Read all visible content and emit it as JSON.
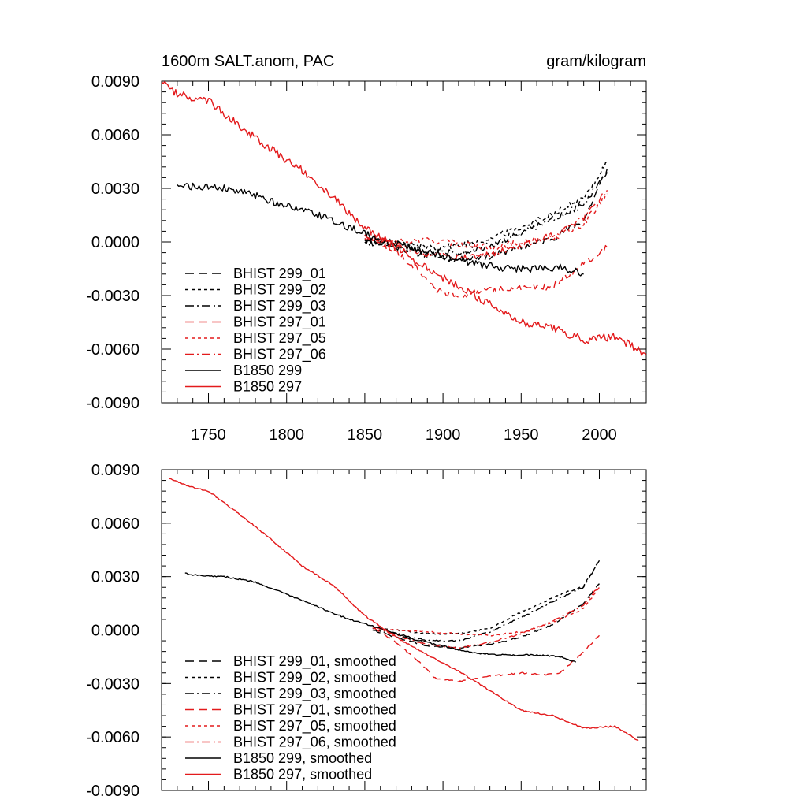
{
  "chart_data": [
    {
      "type": "line",
      "title": "1600m SALT.anom, PAC",
      "units": "gram/kilogram",
      "xlim": [
        1720,
        2030
      ],
      "ylim": [
        -0.009,
        0.009
      ],
      "xticks": [
        1750,
        1800,
        1850,
        1900,
        1950,
        2000
      ],
      "xtick_labels": [
        "1750",
        "1800",
        "1850",
        "1900",
        "1950",
        "2000"
      ],
      "yticks": [
        -0.009,
        -0.006,
        -0.003,
        0.0,
        0.003,
        0.006,
        0.009
      ],
      "ytick_labels": [
        "-0.0090",
        "-0.0060",
        "-0.0030",
        "0.0000",
        "0.0030",
        "0.0060",
        "0.0090"
      ],
      "legend_position": "bottom-left",
      "series": [
        {
          "name": "BHIST 299_01",
          "color": "#000000",
          "dash": "long-dash",
          "jitter": 0.00018,
          "x": [
            1850,
            1870,
            1890,
            1910,
            1930,
            1950,
            1970,
            1990,
            2005
          ],
          "y": [
            0.0002,
            -0.0003,
            -0.0008,
            -0.001,
            -0.0008,
            -0.0003,
            0.0002,
            0.0012,
            0.0041
          ]
        },
        {
          "name": "BHIST 299_02",
          "color": "#000000",
          "dash": "short-dash",
          "jitter": 0.00018,
          "x": [
            1850,
            1870,
            1890,
            1910,
            1930,
            1950,
            1970,
            1990,
            2005
          ],
          "y": [
            0.0001,
            0.0,
            -0.0003,
            -0.0002,
            0.0002,
            0.0008,
            0.0016,
            0.0024,
            0.0045
          ]
        },
        {
          "name": "BHIST 299_03",
          "color": "#000000",
          "dash": "dash-dot",
          "jitter": 0.00018,
          "x": [
            1850,
            1870,
            1890,
            1910,
            1930,
            1950,
            1970,
            1990,
            2005
          ],
          "y": [
            0.0,
            -0.0002,
            -0.0005,
            -0.0006,
            -0.0002,
            0.0005,
            0.0013,
            0.0021,
            0.0039
          ]
        },
        {
          "name": "BHIST 297_01",
          "color": "#e31a1c",
          "dash": "long-dash",
          "jitter": 0.00018,
          "x": [
            1850,
            1870,
            1885,
            1895,
            1910,
            1930,
            1950,
            1970,
            1985,
            2005
          ],
          "y": [
            0.0004,
            -0.0006,
            -0.0016,
            -0.0027,
            -0.003,
            -0.0027,
            -0.0026,
            -0.0025,
            -0.0015,
            -0.0003
          ]
        },
        {
          "name": "BHIST 297_05",
          "color": "#e31a1c",
          "dash": "short-dash",
          "jitter": 0.00018,
          "x": [
            1850,
            1870,
            1890,
            1910,
            1930,
            1950,
            1970,
            1990,
            2005
          ],
          "y": [
            0.0002,
            0.0,
            0.0001,
            -0.0001,
            -0.0003,
            0.0,
            0.0002,
            0.001,
            0.0027
          ]
        },
        {
          "name": "BHIST 297_06",
          "color": "#e31a1c",
          "dash": "dash-dot",
          "jitter": 0.00018,
          "x": [
            1850,
            1870,
            1890,
            1910,
            1930,
            1950,
            1970,
            1990,
            2005
          ],
          "y": [
            0.0004,
            -0.0002,
            -0.0007,
            -0.0009,
            -0.0007,
            -0.0002,
            0.0004,
            0.0013,
            0.0029
          ]
        },
        {
          "name": "B1850 299",
          "color": "#000000",
          "dash": "solid",
          "jitter": 0.0002,
          "x": [
            1730,
            1740,
            1760,
            1780,
            1800,
            1820,
            1840,
            1860,
            1880,
            1900,
            1920,
            1940,
            1960,
            1975,
            1990
          ],
          "y": [
            0.0032,
            0.0031,
            0.003,
            0.0026,
            0.002,
            0.0015,
            0.0008,
            0.0001,
            -0.0004,
            -0.0008,
            -0.0012,
            -0.0015,
            -0.0015,
            -0.0014,
            -0.0018
          ]
        },
        {
          "name": "B1850 297",
          "color": "#e31a1c",
          "dash": "solid",
          "jitter": 0.00022,
          "x": [
            1720,
            1730,
            1750,
            1770,
            1790,
            1810,
            1830,
            1850,
            1870,
            1890,
            1910,
            1930,
            1950,
            1970,
            1990,
            2010,
            2030
          ],
          "y": [
            0.009,
            0.0083,
            0.0079,
            0.0065,
            0.0052,
            0.004,
            0.0025,
            0.0008,
            -0.0003,
            -0.0015,
            -0.0025,
            -0.0035,
            -0.0045,
            -0.0048,
            -0.0055,
            -0.0053,
            -0.0063
          ]
        }
      ]
    },
    {
      "type": "line",
      "title": "",
      "units": "",
      "xlim": [
        1720,
        2030
      ],
      "ylim": [
        -0.009,
        0.009
      ],
      "xticks": [
        1750,
        1800,
        1850,
        1900,
        1950,
        2000
      ],
      "xtick_labels": [],
      "yticks": [
        -0.009,
        -0.006,
        -0.003,
        0.0,
        0.003,
        0.006,
        0.009
      ],
      "ytick_labels": [
        "-0.0090",
        "-0.0060",
        "-0.0030",
        "0.0000",
        "0.0030",
        "0.0060",
        "0.0090"
      ],
      "legend_position": "bottom-left",
      "series": [
        {
          "name": "BHIST 299_01, smoothed",
          "color": "#000000",
          "dash": "long-dash",
          "jitter": 4e-05,
          "x": [
            1855,
            1870,
            1890,
            1910,
            1930,
            1950,
            1970,
            1990,
            2000
          ],
          "y": [
            0.0,
            -0.0004,
            -0.0009,
            -0.001,
            -0.0008,
            -0.0004,
            0.0003,
            0.0015,
            0.0026
          ]
        },
        {
          "name": "BHIST 299_02, smoothed",
          "color": "#000000",
          "dash": "short-dash",
          "jitter": 4e-05,
          "x": [
            1855,
            1870,
            1890,
            1910,
            1930,
            1950,
            1970,
            1990,
            2000
          ],
          "y": [
            0.0001,
            0.0,
            -0.0002,
            -0.0002,
            0.0001,
            0.001,
            0.0018,
            0.0025,
            0.0039
          ]
        },
        {
          "name": "BHIST 299_03, smoothed",
          "color": "#000000",
          "dash": "dash-dot",
          "jitter": 4e-05,
          "x": [
            1855,
            1870,
            1890,
            1910,
            1930,
            1950,
            1970,
            1990,
            2000
          ],
          "y": [
            0.0,
            -0.0002,
            -0.0006,
            -0.0006,
            -0.0001,
            0.0007,
            0.0016,
            0.0024,
            0.0039
          ]
        },
        {
          "name": "BHIST 297_01, smoothed",
          "color": "#e31a1c",
          "dash": "long-dash",
          "jitter": 4e-05,
          "x": [
            1855,
            1870,
            1885,
            1895,
            1910,
            1930,
            1950,
            1965,
            1975,
            1990,
            2000
          ],
          "y": [
            0.0002,
            -0.0007,
            -0.0018,
            -0.0027,
            -0.0029,
            -0.0026,
            -0.0024,
            -0.0025,
            -0.0024,
            -0.0012,
            -0.0003
          ]
        },
        {
          "name": "BHIST 297_05, smoothed",
          "color": "#e31a1c",
          "dash": "short-dash",
          "jitter": 4e-05,
          "x": [
            1855,
            1870,
            1890,
            1910,
            1930,
            1950,
            1970,
            1990,
            2000
          ],
          "y": [
            0.0001,
            0.0,
            -0.0001,
            -0.0002,
            -0.0003,
            -0.0001,
            0.0004,
            0.0012,
            0.0024
          ]
        },
        {
          "name": "BHIST 297_06, smoothed",
          "color": "#e31a1c",
          "dash": "dash-dot",
          "jitter": 4e-05,
          "x": [
            1855,
            1870,
            1890,
            1910,
            1930,
            1950,
            1970,
            1990,
            2000
          ],
          "y": [
            0.0002,
            -0.0003,
            -0.0008,
            -0.001,
            -0.0007,
            -0.0002,
            0.0005,
            0.0014,
            0.0025
          ]
        },
        {
          "name": "B1850 299, smoothed",
          "color": "#000000",
          "dash": "solid",
          "jitter": 4e-05,
          "x": [
            1735,
            1740,
            1760,
            1780,
            1800,
            1820,
            1840,
            1860,
            1880,
            1900,
            1920,
            1940,
            1960,
            1975,
            1985
          ],
          "y": [
            0.0032,
            0.0031,
            0.003,
            0.0027,
            0.002,
            0.0013,
            0.0006,
            0.0001,
            -0.0005,
            -0.0009,
            -0.0013,
            -0.0014,
            -0.0014,
            -0.0015,
            -0.0018
          ]
        },
        {
          "name": "B1850 297, smoothed",
          "color": "#e31a1c",
          "dash": "solid",
          "jitter": 4e-05,
          "x": [
            1725,
            1740,
            1750,
            1770,
            1790,
            1810,
            1830,
            1850,
            1870,
            1890,
            1910,
            1930,
            1950,
            1970,
            1990,
            2010,
            2025
          ],
          "y": [
            0.0085,
            0.008,
            0.0078,
            0.0065,
            0.0051,
            0.0036,
            0.0025,
            0.0008,
            -0.0004,
            -0.0014,
            -0.0023,
            -0.0034,
            -0.0045,
            -0.0048,
            -0.0055,
            -0.0054,
            -0.0062
          ]
        }
      ]
    }
  ]
}
